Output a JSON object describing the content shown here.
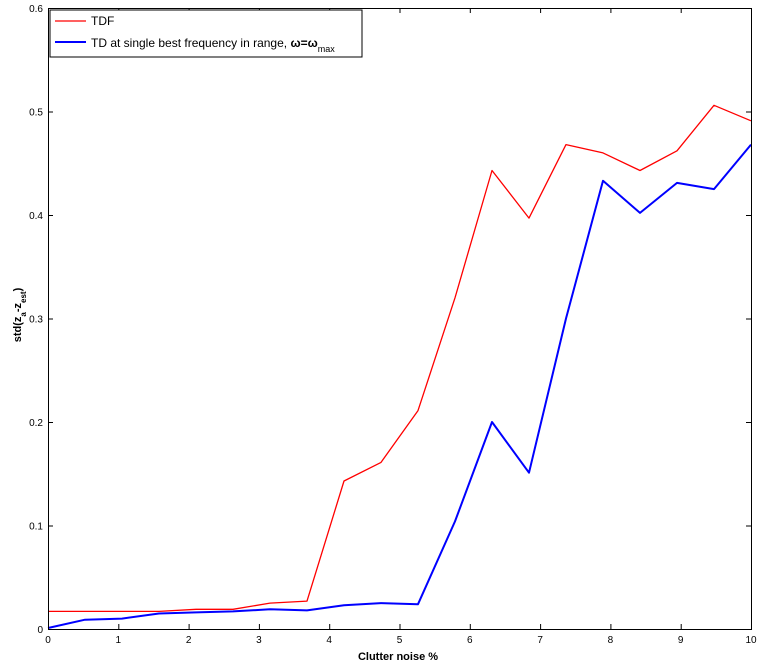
{
  "chart_data": {
    "type": "line",
    "xlabel": "Clutter noise %",
    "ylabel_parts": {
      "main": "std(z",
      "sub1": "a",
      "minus": "-z",
      "sub2": "est",
      "close": ")"
    },
    "xlim": [
      0,
      10
    ],
    "ylim": [
      0,
      0.6
    ],
    "xticks": [
      0,
      1,
      2,
      3,
      4,
      5,
      6,
      7,
      8,
      9,
      10
    ],
    "yticks": [
      0,
      0.1,
      0.2,
      0.3,
      0.4,
      0.5,
      0.6
    ],
    "xtick_labels": [
      "0",
      "1",
      "2",
      "3",
      "4",
      "5",
      "6",
      "7",
      "8",
      "9",
      "10"
    ],
    "ytick_labels": [
      "0",
      "0.1",
      "0.2",
      "0.3",
      "0.4",
      "0.5",
      "0.6"
    ],
    "grid": false,
    "legend_position": "top-left",
    "x": [
      0,
      0.526,
      1.053,
      1.579,
      2.105,
      2.632,
      3.158,
      3.684,
      4.211,
      4.737,
      5.263,
      5.789,
      6.316,
      6.842,
      7.368,
      7.895,
      8.421,
      8.947,
      9.474,
      10.0
    ],
    "series": [
      {
        "name": "TDF",
        "legend_parts": {
          "main": "TDF"
        },
        "color": "#ff0000",
        "values": [
          0.017,
          0.017,
          0.017,
          0.017,
          0.019,
          0.019,
          0.025,
          0.027,
          0.143,
          0.161,
          0.211,
          0.32,
          0.443,
          0.397,
          0.468,
          0.46,
          0.443,
          0.462,
          0.506,
          0.491
        ]
      },
      {
        "name": "TD at single best frequency in range, ω=ω_max",
        "legend_parts": {
          "main": "TD at single best frequency in range, ",
          "omega": "ω=ω",
          "sub": "max"
        },
        "color": "#0000ff",
        "values": [
          0.001,
          0.009,
          0.01,
          0.015,
          0.016,
          0.017,
          0.019,
          0.018,
          0.023,
          0.025,
          0.024,
          0.104,
          0.2,
          0.151,
          0.3,
          0.433,
          0.402,
          0.431,
          0.425,
          0.468
        ]
      }
    ]
  }
}
